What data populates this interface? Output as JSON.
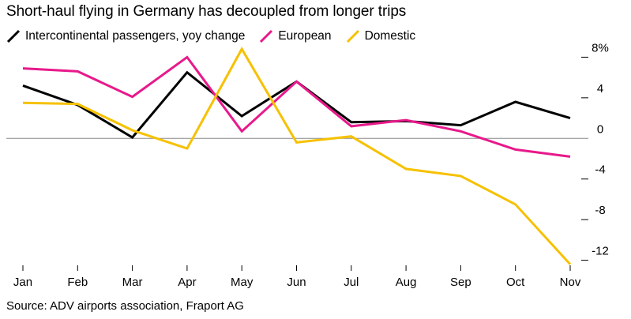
{
  "chart_data": {
    "type": "line",
    "title": "Short-haul flying in Germany has decoupled from longer trips",
    "source": "Source: ADV airports association, Fraport AG",
    "categories": [
      "Jan",
      "Feb",
      "Mar",
      "Apr",
      "May",
      "Jun",
      "Jul",
      "Aug",
      "Sep",
      "Oct",
      "Nov"
    ],
    "ylim": [
      -12.5,
      8.5
    ],
    "yticks": [
      8,
      4,
      0,
      -4,
      -8,
      -12
    ],
    "ytick_labels": [
      "8%",
      "4",
      "0",
      "-4",
      "-8",
      "-12"
    ],
    "zero_line": true,
    "series": [
      {
        "key": "intercontinental",
        "name": "Intercontinental passengers, yoy change",
        "color": "#000000",
        "values": [
          5.2,
          3.3,
          0.1,
          6.5,
          2.2,
          5.6,
          1.6,
          1.7,
          1.3,
          3.6,
          2.0
        ]
      },
      {
        "key": "european",
        "name": "European",
        "color": "#e8198b",
        "values": [
          6.9,
          6.6,
          4.1,
          8.0,
          0.7,
          5.6,
          1.2,
          1.8,
          0.7,
          -1.1,
          -1.8
        ]
      },
      {
        "key": "domestic",
        "name": "Domestic",
        "color": "#f6c100",
        "values": [
          3.5,
          3.4,
          0.8,
          -1.0,
          8.8,
          -0.4,
          0.2,
          -3.0,
          -3.7,
          -6.5,
          -12.4
        ]
      }
    ]
  }
}
